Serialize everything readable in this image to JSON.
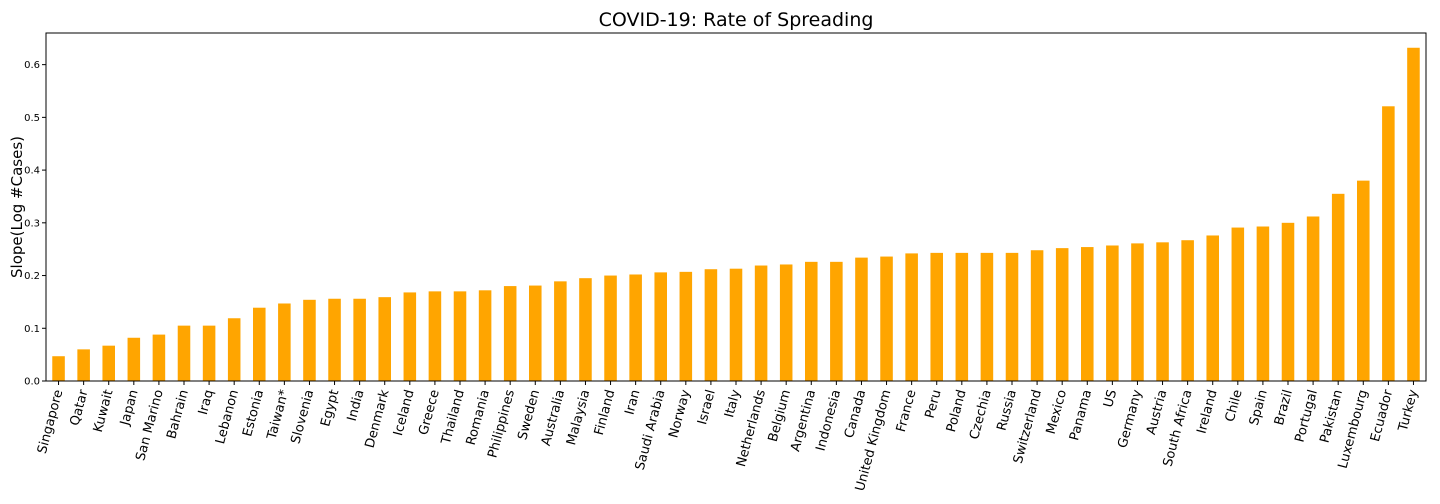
{
  "chart_data": {
    "type": "bar",
    "title": "COVID-19: Rate of Spreading",
    "xlabel": "",
    "ylabel": "Slope(Log #Cases)",
    "ylim": [
      0,
      0.66
    ],
    "yticks": [
      "0.0",
      "0.1",
      "0.2",
      "0.3",
      "0.4",
      "0.5",
      "0.6"
    ],
    "bar_color": "#ffa500",
    "grid": false,
    "legend": "none",
    "categories": [
      "Singapore",
      "Qatar",
      "Kuwait",
      "Japan",
      "San Marino",
      "Bahrain",
      "Iraq",
      "Lebanon",
      "Estonia",
      "Taiwan*",
      "Slovenia",
      "Egypt",
      "India",
      "Denmark",
      "Iceland",
      "Greece",
      "Thailand",
      "Romania",
      "Philippines",
      "Sweden",
      "Australia",
      "Malaysia",
      "Finland",
      "Iran",
      "Saudi Arabia",
      "Norway",
      "Israel",
      "Italy",
      "Netherlands",
      "Belgium",
      "Argentina",
      "Indonesia",
      "Canada",
      "United Kingdom",
      "France",
      "Peru",
      "Poland",
      "Czechia",
      "Russia",
      "Switzerland",
      "Mexico",
      "Panama",
      "US",
      "Germany",
      "Austria",
      "South Africa",
      "Ireland",
      "Chile",
      "Spain",
      "Brazil",
      "Portugal",
      "Pakistan",
      "Luxembourg",
      "Ecuador",
      "Turkey"
    ],
    "values": [
      0.047,
      0.06,
      0.067,
      0.082,
      0.088,
      0.105,
      0.105,
      0.119,
      0.139,
      0.147,
      0.154,
      0.156,
      0.156,
      0.159,
      0.168,
      0.17,
      0.17,
      0.172,
      0.18,
      0.181,
      0.189,
      0.195,
      0.2,
      0.202,
      0.206,
      0.207,
      0.212,
      0.213,
      0.219,
      0.221,
      0.226,
      0.226,
      0.234,
      0.236,
      0.242,
      0.243,
      0.243,
      0.243,
      0.243,
      0.248,
      0.252,
      0.254,
      0.257,
      0.261,
      0.263,
      0.267,
      0.276,
      0.291,
      0.293,
      0.3,
      0.312,
      0.355,
      0.38,
      0.521,
      0.632
    ]
  }
}
